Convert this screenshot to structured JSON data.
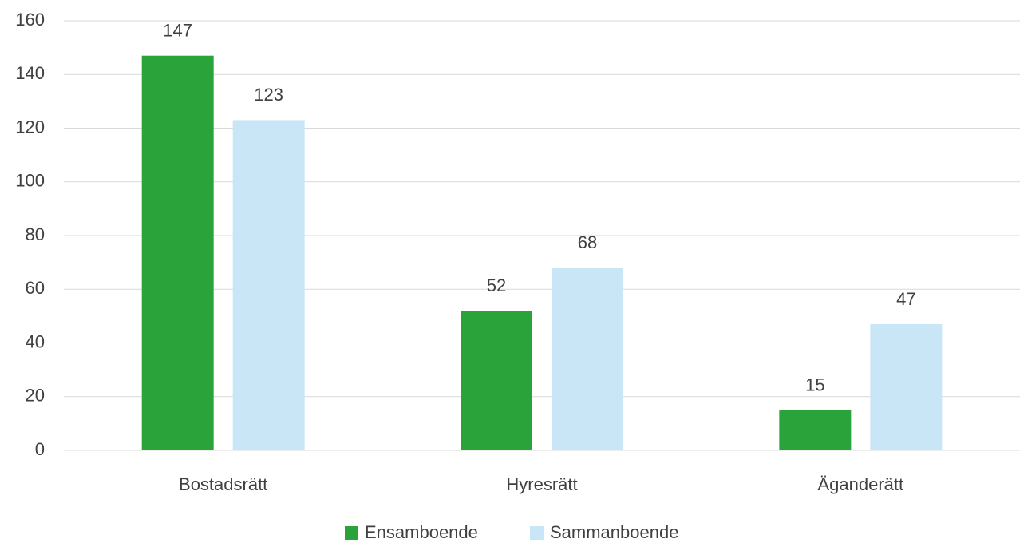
{
  "chart_data": {
    "type": "bar",
    "categories": [
      "Bostadsrätt",
      "Hyresrätt",
      "Äganderätt"
    ],
    "series": [
      {
        "name": "Ensamboende",
        "color": "#2aa33a",
        "values": [
          147,
          52,
          15
        ]
      },
      {
        "name": "Sammanboende",
        "color": "#c9e6f7",
        "values": [
          123,
          68,
          47
        ]
      }
    ],
    "ylim": [
      0,
      160
    ],
    "yticks": [
      0,
      20,
      40,
      60,
      80,
      100,
      120,
      140,
      160
    ],
    "grid": true,
    "legend": "bottom"
  }
}
